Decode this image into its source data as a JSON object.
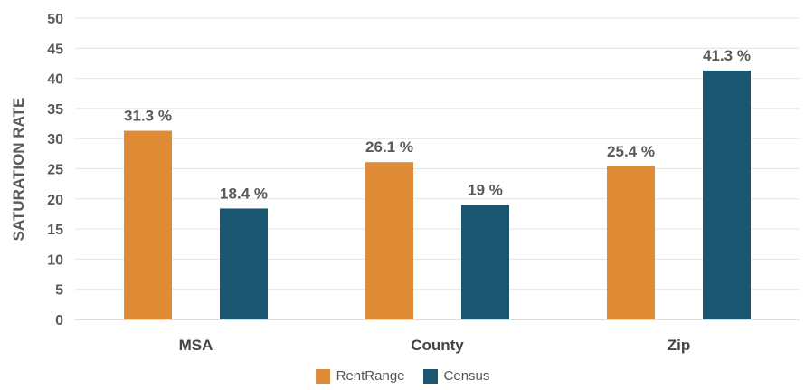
{
  "chart_data": {
    "type": "bar",
    "title": "",
    "xlabel": "",
    "ylabel": "SATURATION RATE",
    "ylim": [
      0,
      50
    ],
    "yticks": [
      0,
      5,
      10,
      15,
      20,
      25,
      30,
      35,
      40,
      45,
      50
    ],
    "categories": [
      "MSA",
      "County",
      "Zip"
    ],
    "series": [
      {
        "name": "RentRange",
        "color": "#e08c36",
        "values": [
          31.3,
          26.1,
          25.4
        ],
        "labels": [
          "31.3 %",
          "26.1 %",
          "25.4 %"
        ]
      },
      {
        "name": "Census",
        "color": "#1a5670",
        "values": [
          18.4,
          19,
          41.3
        ],
        "labels": [
          "18.4 %",
          "19 %",
          "41.3 %"
        ]
      }
    ],
    "grid": true,
    "legend_position": "bottom-center"
  }
}
